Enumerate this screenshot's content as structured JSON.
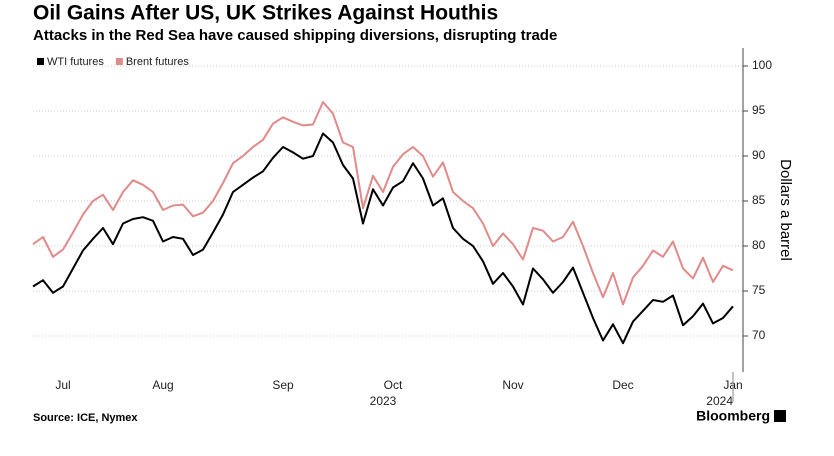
{
  "chart_data": {
    "type": "line",
    "title": "Oil Gains After US, UK Strikes Against Houthis",
    "subtitle": "Attacks in the Red Sea have caused shipping diversions, disrupting trade",
    "y_axis_label": "Dollars a barrel",
    "source": "Source: ICE, Nymex",
    "brand": "Bloomberg",
    "x_group_labels": [
      "2023",
      "2024"
    ],
    "categories": [
      null,
      null,
      null,
      "Jul",
      null,
      null,
      null,
      null,
      null,
      null,
      null,
      null,
      null,
      "Aug",
      null,
      null,
      null,
      null,
      null,
      null,
      null,
      null,
      null,
      null,
      null,
      "Sep",
      null,
      null,
      null,
      null,
      null,
      null,
      null,
      null,
      null,
      null,
      "Oct",
      null,
      null,
      null,
      null,
      null,
      null,
      null,
      null,
      null,
      null,
      null,
      "Nov",
      null,
      null,
      null,
      null,
      null,
      null,
      null,
      null,
      null,
      null,
      "Dec",
      null,
      null,
      null,
      null,
      null,
      null,
      null,
      null,
      null,
      null,
      "Jan"
    ],
    "series": [
      {
        "name": "WTI futures",
        "color": "#000000",
        "values": [
          75.5,
          76.2,
          74.8,
          75.5,
          77.5,
          79.5,
          80.8,
          82,
          80.2,
          82.5,
          83,
          83.2,
          82.8,
          80.5,
          81,
          80.8,
          79,
          79.6,
          81.5,
          83.5,
          86,
          86.8,
          87.6,
          88.3,
          89.8,
          91,
          90.4,
          89.7,
          90,
          92.5,
          91.5,
          89,
          87.5,
          82.5,
          86.3,
          84.5,
          86.5,
          87.2,
          89.2,
          87.5,
          84.5,
          85.3,
          82,
          80.8,
          80,
          78.3,
          75.8,
          77,
          75.5,
          73.5,
          77.5,
          76.3,
          74.8,
          76,
          77.6,
          74.8,
          72,
          69.5,
          71.3,
          69.2,
          71.6,
          72.8,
          74,
          73.8,
          74.5,
          71.2,
          72.2,
          73.6,
          71.4,
          72,
          73.3
        ]
      },
      {
        "name": "Brent futures",
        "color": "#e08a8a",
        "values": [
          80.2,
          81,
          78.8,
          79.6,
          81.5,
          83.5,
          85,
          85.7,
          84,
          86,
          87.3,
          86.8,
          86,
          84,
          84.5,
          84.6,
          83.3,
          83.7,
          85,
          87,
          89.2,
          90,
          91,
          91.8,
          93.6,
          94.3,
          93.8,
          93.4,
          93.5,
          96,
          94.7,
          91.5,
          91,
          84.2,
          87.8,
          86,
          88.8,
          90.2,
          91,
          90,
          87.7,
          89.3,
          86,
          85,
          84.2,
          82.5,
          80,
          81.4,
          80.2,
          78.5,
          82,
          81.7,
          80.5,
          81,
          82.7,
          80,
          77,
          74.3,
          77,
          73.5,
          76.5,
          77.8,
          79.5,
          78.8,
          80.5,
          77.5,
          76.4,
          78.7,
          76,
          77.8,
          77.3
        ]
      }
    ],
    "ylim": [
      66,
      102
    ],
    "yticks": [
      70,
      75,
      80,
      85,
      90,
      95,
      100
    ],
    "grid": true,
    "legend": "top-left"
  }
}
